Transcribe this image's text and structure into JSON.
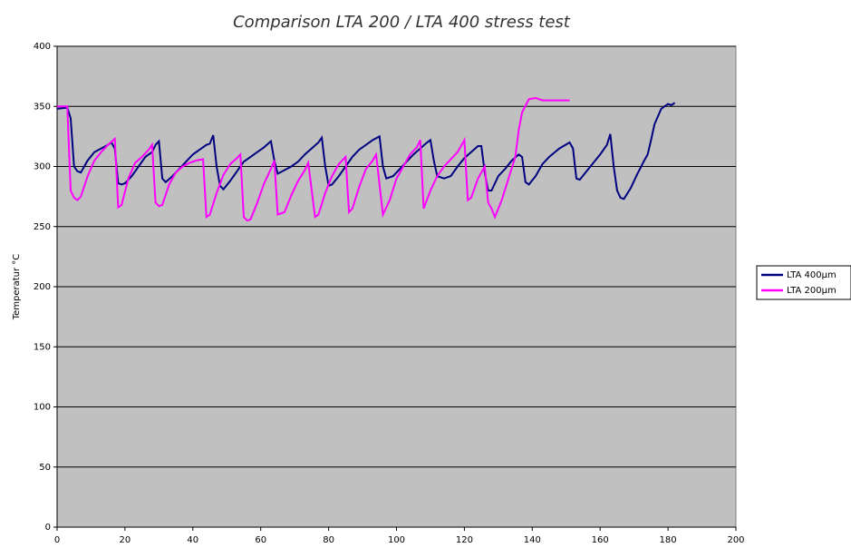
{
  "chart_data": {
    "type": "line",
    "title": "Comparison LTA 200 / LTA 400 stress test",
    "ylabel": "Temperatur °C",
    "xlim": [
      0,
      200
    ],
    "xticks": [
      0,
      20,
      40,
      60,
      80,
      100,
      120,
      140,
      160,
      180,
      200
    ],
    "ylim": [
      0,
      400
    ],
    "yticks": [
      0,
      50,
      100,
      150,
      200,
      250,
      300,
      350,
      400
    ],
    "grid": true,
    "legend": "right",
    "series": [
      {
        "name": "LTA 400µm",
        "color": "#000080",
        "x": [
          0,
          3,
          4,
          5,
          6,
          7,
          9,
          11,
          13,
          15,
          16,
          17,
          18,
          19,
          20,
          22,
          24,
          26,
          28,
          29,
          30,
          31,
          32,
          34,
          36,
          38,
          40,
          42,
          44,
          45,
          46,
          47,
          48,
          49,
          51,
          53,
          55,
          57,
          59,
          61,
          63,
          64,
          65,
          67,
          69,
          71,
          73,
          75,
          77,
          78,
          79,
          80,
          81,
          83,
          85,
          87,
          89,
          91,
          93,
          95,
          96,
          97,
          99,
          101,
          103,
          105,
          107,
          109,
          110,
          111,
          112,
          114,
          116,
          118,
          120,
          122,
          124,
          125,
          126,
          127,
          128,
          130,
          132,
          134,
          136,
          137,
          138,
          139,
          141,
          143,
          145,
          148,
          151,
          152,
          153,
          154,
          156,
          158,
          160,
          162,
          163,
          164,
          165,
          166,
          167,
          169,
          171,
          173,
          174,
          175,
          176,
          178,
          180,
          181,
          182
        ],
        "values": [
          348,
          349,
          340,
          300,
          296,
          295,
          305,
          312,
          315,
          318,
          320,
          315,
          286,
          285,
          286,
          292,
          300,
          308,
          312,
          318,
          321,
          290,
          287,
          292,
          298,
          304,
          310,
          314,
          318,
          319,
          326,
          300,
          284,
          281,
          288,
          296,
          304,
          308,
          312,
          316,
          321,
          305,
          294,
          297,
          300,
          304,
          310,
          315,
          320,
          324,
          300,
          284,
          285,
          292,
          300,
          308,
          314,
          318,
          322,
          325,
          300,
          290,
          292,
          298,
          304,
          310,
          315,
          320,
          322,
          305,
          292,
          290,
          292,
          300,
          307,
          312,
          317,
          317,
          295,
          280,
          280,
          292,
          298,
          305,
          310,
          308,
          287,
          285,
          292,
          302,
          308,
          315,
          320,
          315,
          290,
          289,
          296,
          303,
          310,
          318,
          327,
          300,
          280,
          274,
          273,
          282,
          294,
          305,
          310,
          322,
          335,
          348,
          352,
          351,
          353
        ]
      },
      {
        "name": "LTA 200µm",
        "color": "#ff00ff",
        "x": [
          0,
          3,
          4,
          5,
          6,
          7,
          9,
          11,
          13,
          15,
          17,
          18,
          19,
          21,
          23,
          25,
          27,
          28,
          29,
          30,
          31,
          33,
          35,
          37,
          39,
          41,
          43,
          44,
          45,
          47,
          49,
          51,
          53,
          54,
          55,
          56,
          57,
          59,
          61,
          63,
          64,
          65,
          67,
          69,
          71,
          73,
          74,
          76,
          77,
          79,
          81,
          83,
          85,
          86,
          87,
          89,
          91,
          93,
          94,
          96,
          98,
          100,
          102,
          104,
          106,
          107,
          108,
          110,
          112,
          114,
          116,
          118,
          120,
          121,
          122,
          124,
          126,
          127,
          128,
          129,
          131,
          133,
          135,
          136,
          137,
          139,
          141,
          143,
          147,
          151
        ],
        "values": [
          350,
          350,
          280,
          274,
          272,
          275,
          292,
          305,
          312,
          318,
          323,
          266,
          268,
          290,
          303,
          308,
          314,
          318,
          270,
          267,
          268,
          285,
          295,
          300,
          303,
          305,
          306,
          258,
          260,
          278,
          293,
          302,
          307,
          310,
          258,
          255,
          256,
          270,
          286,
          298,
          305,
          260,
          262,
          276,
          288,
          297,
          303,
          258,
          260,
          278,
          292,
          302,
          308,
          262,
          265,
          283,
          298,
          305,
          310,
          260,
          272,
          290,
          300,
          310,
          316,
          322,
          265,
          280,
          292,
          300,
          306,
          312,
          322,
          272,
          274,
          290,
          300,
          270,
          265,
          258,
          272,
          290,
          308,
          330,
          345,
          356,
          357,
          355,
          355,
          355
        ]
      }
    ]
  }
}
